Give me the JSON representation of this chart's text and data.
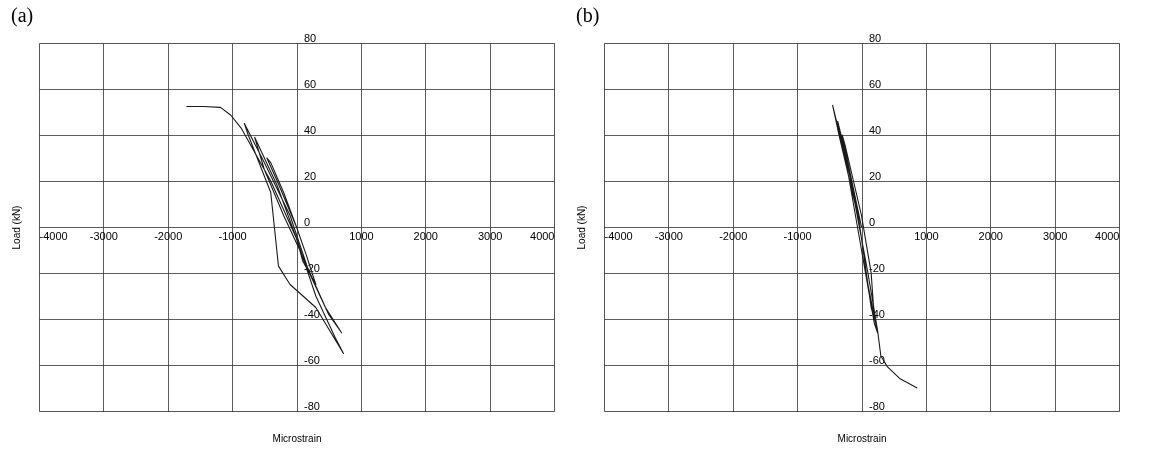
{
  "chart_data": [
    {
      "type": "line",
      "title": "(a)",
      "xlabel": "Microstrain",
      "ylabel": "Load (kN)",
      "grid": true,
      "marker": "none",
      "line_style": "solid",
      "xlim": [
        -4000,
        4000
      ],
      "ylim": [
        -80,
        80
      ],
      "xticks": [
        -4000,
        -3000,
        -2000,
        -1000,
        {
          "value": 0,
          "label": null
        },
        1000,
        2000,
        3000,
        4000
      ],
      "yticks": [
        -80,
        -60,
        -40,
        -20,
        0,
        20,
        40,
        60,
        80
      ],
      "series": [
        {
          "color": "#1a1a1a",
          "x": [
            0,
            -200,
            -400,
            -460,
            -300,
            0,
            150,
            300,
            100,
            0,
            -300,
            -650,
            -500,
            -200,
            50,
            450,
            700,
            500,
            200,
            -100,
            -500,
            -810,
            -750,
            -400,
            -280,
            -100,
            300,
            730,
            600,
            300,
            0,
            -400,
            -860,
            -1020,
            -1180,
            -1450,
            -1710
          ],
          "values": [
            0,
            15,
            28,
            30,
            20,
            0,
            -12,
            -25,
            -15,
            -5,
            18,
            39,
            25,
            5,
            -10,
            -35,
            -46,
            -38,
            -20,
            5,
            28,
            45,
            40,
            15,
            -17,
            -25,
            -35,
            -55,
            -48,
            -30,
            -5,
            20,
            43,
            48.6,
            52,
            52.4,
            52.4
          ]
        }
      ]
    },
    {
      "type": "line",
      "title": "(b)",
      "xlabel": "Microstrain",
      "ylabel": "Load (kN)",
      "grid": true,
      "marker": "none",
      "line_style": "solid",
      "xlim": [
        -4000,
        4000
      ],
      "ylim": [
        -80,
        80
      ],
      "xticks": [
        -4000,
        -3000,
        -2000,
        -1000,
        {
          "value": 0,
          "label": null
        },
        1000,
        2000,
        3000,
        4000
      ],
      "yticks": [
        -80,
        -60,
        -40,
        -20,
        0,
        20,
        40,
        60,
        80
      ],
      "series": [
        {
          "color": "#1a1a1a",
          "x": [
            0,
            -150,
            -300,
            -250,
            0,
            150,
            200,
            150,
            0,
            -200,
            -370,
            -300,
            -50,
            100,
            250,
            200,
            0,
            -250,
            -448,
            -350,
            -100,
            100,
            250,
            300,
            400,
            600,
            866
          ],
          "values": [
            0,
            20,
            40,
            35,
            5,
            -20,
            -40,
            -35,
            -5,
            25,
            46,
            38,
            5,
            -25,
            -46,
            -42,
            -10,
            30,
            52.9,
            40,
            10,
            -20,
            -45,
            -56,
            -60.7,
            -66,
            -70
          ]
        }
      ]
    }
  ]
}
